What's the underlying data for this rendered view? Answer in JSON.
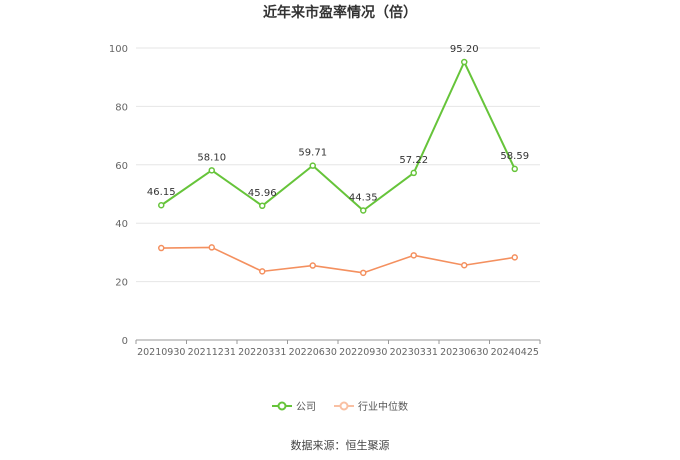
{
  "chart_data": {
    "type": "line",
    "title": "近年来市盈率情况（倍）",
    "categories": [
      "20210930",
      "20211231",
      "20220331",
      "20220630",
      "20220930",
      "20230331",
      "20230630",
      "20240425"
    ],
    "ylim": [
      0,
      100
    ],
    "yticks": [
      0,
      20,
      40,
      60,
      80,
      100
    ],
    "grid": true,
    "legend_position": "bottom",
    "series": [
      {
        "name": "公司",
        "color": "#66c43a",
        "values": [
          46.15,
          58.1,
          45.96,
          59.71,
          44.35,
          57.22,
          95.2,
          58.59
        ],
        "labels": [
          "46.15",
          "58.10",
          "45.96",
          "59.71",
          "44.35",
          "57.22",
          "95.20",
          "58.59"
        ]
      },
      {
        "name": "行业中位数",
        "color": "#f4905f",
        "values": [
          31.5,
          31.7,
          23.5,
          25.5,
          23.0,
          29.0,
          25.6,
          28.3
        ]
      }
    ]
  },
  "source": "数据来源：恒生聚源"
}
